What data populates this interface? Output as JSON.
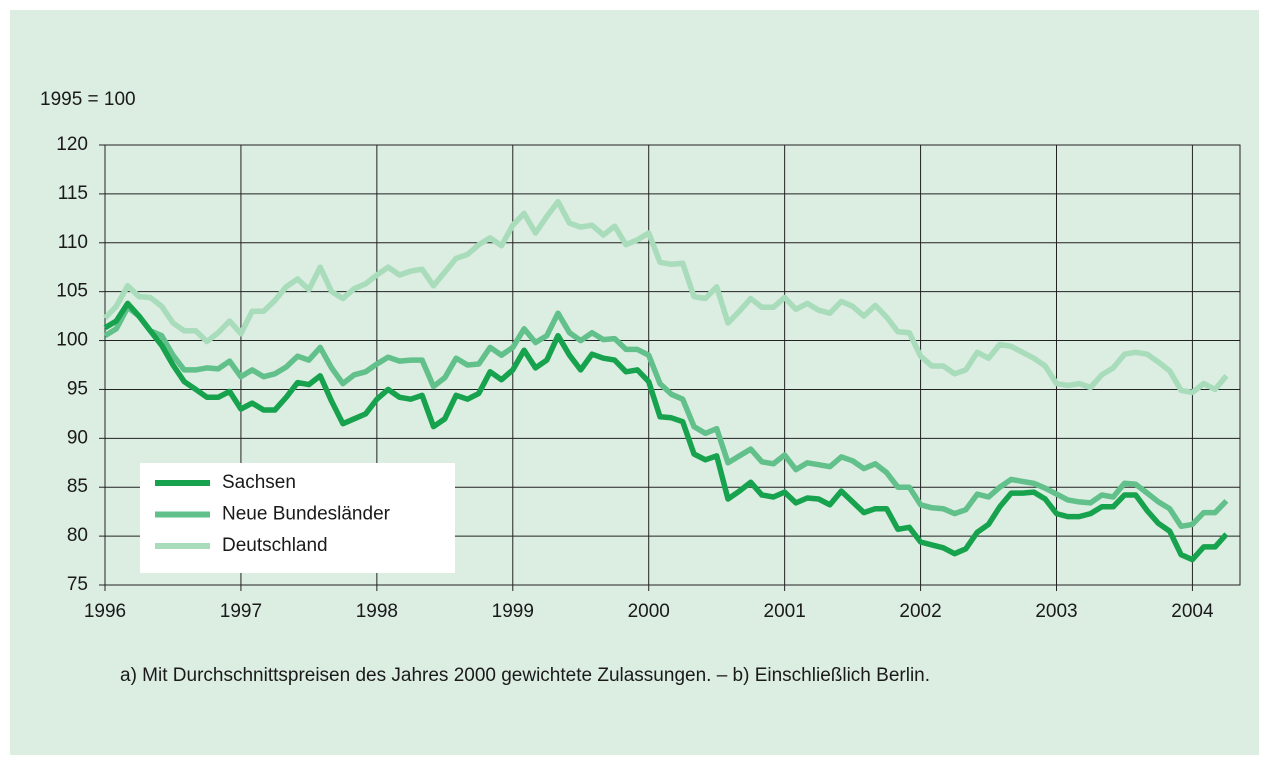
{
  "chart_data": {
    "type": "line",
    "subtitle": "1995 = 100",
    "note": "a) Mit Durchschnittspreisen des Jahres 2000 gewichtete Zulassungen. – b) Einschließlich Berlin.",
    "x": [
      1996,
      1996.083,
      1996.167,
      1996.25,
      1996.333,
      1996.417,
      1996.5,
      1996.583,
      1996.667,
      1996.75,
      1996.833,
      1996.917,
      1997,
      1997.083,
      1997.167,
      1997.25,
      1997.333,
      1997.417,
      1997.5,
      1997.583,
      1997.667,
      1997.75,
      1997.833,
      1997.917,
      1998,
      1998.083,
      1998.167,
      1998.25,
      1998.333,
      1998.417,
      1998.5,
      1998.583,
      1998.667,
      1998.75,
      1998.833,
      1998.917,
      1999,
      1999.083,
      1999.167,
      1999.25,
      1999.333,
      1999.417,
      1999.5,
      1999.583,
      1999.667,
      1999.75,
      1999.833,
      1999.917,
      2000,
      2000.083,
      2000.167,
      2000.25,
      2000.333,
      2000.417,
      2000.5,
      2000.583,
      2000.667,
      2000.75,
      2000.833,
      2000.917,
      2001,
      2001.083,
      2001.167,
      2001.25,
      2001.333,
      2001.417,
      2001.5,
      2001.583,
      2001.667,
      2001.75,
      2001.833,
      2001.917,
      2002,
      2002.083,
      2002.167,
      2002.25,
      2002.333,
      2002.417,
      2002.5,
      2002.583,
      2002.667,
      2002.75,
      2002.833,
      2002.917,
      2003,
      2003.083,
      2003.167,
      2003.25,
      2003.333,
      2003.417,
      2003.5,
      2003.583,
      2003.667,
      2003.75,
      2003.833,
      2003.917,
      2004,
      2004.083,
      2004.167,
      2004.25
    ],
    "series": [
      {
        "name": "Sachsen",
        "color": "#17a24e",
        "values": [
          101.3,
          102,
          103.8,
          102.5,
          101,
          99.5,
          97.5,
          95.8,
          95,
          94.2,
          94.2,
          94.8,
          93,
          93.6,
          92.9,
          92.9,
          94.2,
          95.7,
          95.5,
          96.4,
          93.8,
          91.5,
          92,
          92.5,
          94,
          95,
          94.2,
          94,
          94.4,
          91.2,
          92,
          94.4,
          94,
          94.6,
          96.8,
          96,
          97,
          99,
          97.2,
          98,
          100.5,
          98.5,
          97,
          98.6,
          98.2,
          98,
          96.8,
          97,
          95.8,
          92.2,
          92.1,
          91.7,
          88.4,
          87.8,
          88.2,
          83.8,
          84.6,
          85.5,
          84.2,
          84,
          84.5,
          83.4,
          83.9,
          83.8,
          83.2,
          84.6,
          83.5,
          82.4,
          82.8,
          82.8,
          80.7,
          80.9,
          79.4,
          79.1,
          78.8,
          78.2,
          78.7,
          80.4,
          81.2,
          83,
          84.4,
          84.4,
          84.5,
          83.8,
          82.3,
          82,
          82,
          82.3,
          83,
          83,
          84.2,
          84.2,
          82.6,
          81.3,
          80.5,
          78.1,
          77.6,
          78.9,
          78.9,
          80.2
        ]
      },
      {
        "name": "Neue Bundesländer",
        "color": "#62c08a",
        "values": [
          100.5,
          101.2,
          103.4,
          102.5,
          101,
          100.5,
          98.5,
          97,
          97,
          97.2,
          97.1,
          97.9,
          96.3,
          97,
          96.3,
          96.6,
          97.3,
          98.4,
          98,
          99.3,
          97.2,
          95.6,
          96.5,
          96.8,
          97.6,
          98.3,
          97.9,
          98,
          98,
          95.3,
          96.2,
          98.2,
          97.5,
          97.6,
          99.3,
          98.5,
          99.3,
          101.2,
          99.8,
          100.5,
          102.8,
          100.8,
          100,
          100.8,
          100.1,
          100.2,
          99.1,
          99.1,
          98.5,
          95.6,
          94.5,
          94,
          91.2,
          90.5,
          91,
          87.5,
          88.2,
          88.9,
          87.6,
          87.4,
          88.3,
          86.8,
          87.5,
          87.3,
          87.1,
          88.1,
          87.7,
          86.9,
          87.4,
          86.5,
          85,
          85,
          83.2,
          82.9,
          82.8,
          82.3,
          82.7,
          84.3,
          84,
          85,
          85.8,
          85.6,
          85.4,
          84.9,
          84.3,
          83.7,
          83.5,
          83.4,
          84.2,
          84,
          85.4,
          85.3,
          84.4,
          83.5,
          82.8,
          81,
          81.2,
          82.4,
          82.4,
          83.6
        ]
      },
      {
        "name": "Deutschland",
        "color": "#a8dcbb",
        "values": [
          102.3,
          103.5,
          105.6,
          104.5,
          104.4,
          103.5,
          101.8,
          101,
          101,
          99.9,
          100.8,
          102,
          100.7,
          103,
          103,
          104.1,
          105.5,
          106.3,
          105.2,
          107.5,
          105,
          104.3,
          105.3,
          105.8,
          106.7,
          107.5,
          106.7,
          107.1,
          107.3,
          105.6,
          107,
          108.4,
          108.8,
          109.8,
          110.5,
          109.7,
          111.8,
          113,
          111,
          112.7,
          114.2,
          112,
          111.6,
          111.8,
          110.8,
          111.7,
          109.8,
          110.3,
          111,
          108,
          107.8,
          107.9,
          104.5,
          104.3,
          105.5,
          101.8,
          103,
          104.3,
          103.4,
          103.4,
          104.4,
          103.2,
          103.8,
          103.1,
          102.8,
          104,
          103.5,
          102.5,
          103.6,
          102.4,
          100.9,
          100.8,
          98.4,
          97.4,
          97.4,
          96.6,
          97,
          98.8,
          98.2,
          99.6,
          99.4,
          98.8,
          98.2,
          97.4,
          95.6,
          95.4,
          95.6,
          95.2,
          96.5,
          97.2,
          98.6,
          98.8,
          98.6,
          97.8,
          96.9,
          94.9,
          94.7,
          95.6,
          95,
          96.4
        ]
      }
    ],
    "xlim": [
      1996,
      2004.35
    ],
    "xticks": [
      1996,
      1997,
      1998,
      1999,
      2000,
      2001,
      2002,
      2003,
      2004
    ],
    "ylim": [
      75,
      120
    ],
    "yticks": [
      75,
      80,
      85,
      90,
      95,
      100,
      105,
      110,
      115,
      120
    ],
    "grid": true,
    "legend": "lower left"
  }
}
